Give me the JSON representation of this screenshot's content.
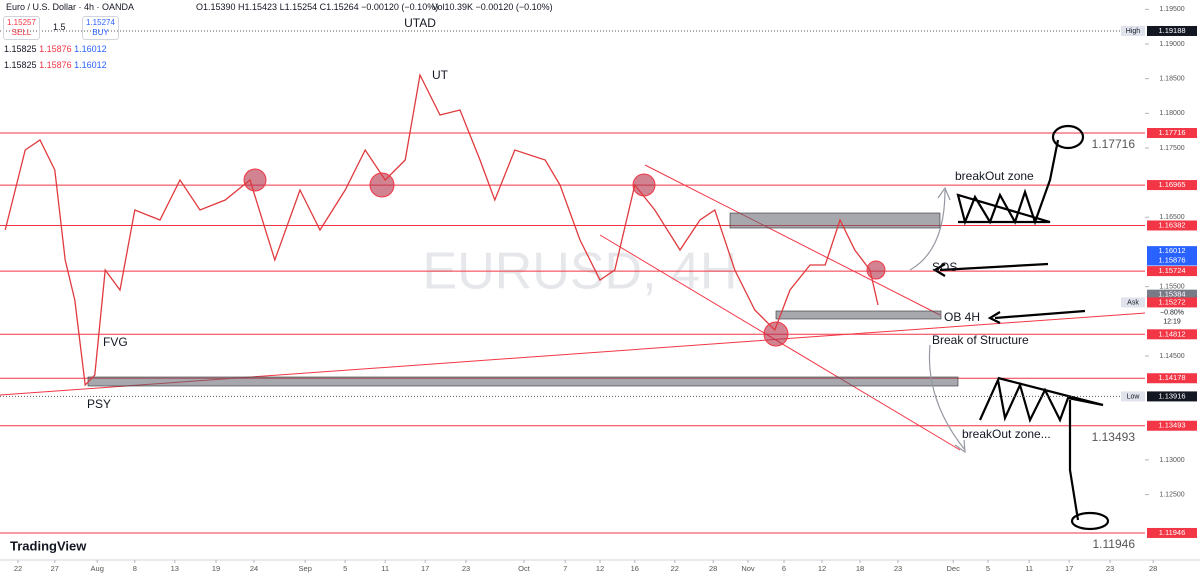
{
  "header": {
    "symbol": "Euro / U.S. Dollar · 4h · OANDA",
    "ohlc": "O1.15390 H1.15423 L1.15254 C1.15264 −0.00120 (−0.10%)",
    "volume": "Vol10.39K −0.00120 (−0.10%)",
    "sell_price": "1.15257",
    "sell": "SELL",
    "spread": "1.5",
    "buy_price": "1.15274",
    "buy": "BUY",
    "rows": [
      [
        "1.15825",
        "1.15876",
        "1.16012"
      ],
      [
        "1.15825",
        "1.15876",
        "1.16012"
      ]
    ]
  },
  "chart_data": {
    "type": "line",
    "watermark": "EURUSD, 4H",
    "logo": "TradingView",
    "x": [
      -1.6,
      0.9,
      2.75,
      4.6,
      5.9,
      7.1,
      8.4,
      9.6,
      10.9,
      12.75,
      14.6,
      17.75,
      20.25,
      22.75,
      25.9,
      29,
      32.1,
      35.25,
      37.75,
      40.9,
      43.4,
      45.9,
      48.4,
      50.25,
      52.75,
      55.25,
      57.75,
      59.6,
      62.1,
      65.9,
      67.75,
      70.25,
      72.75,
      74.6,
      77.1,
      79.6,
      82.75,
      85.25,
      87.1,
      89.6,
      92.1,
      94.6,
      96.5,
      99,
      100.9,
      102.75,
      104.6,
      106.5,
      107.5
    ],
    "series": [
      {
        "color": "#e03a3e",
        "values": [
          1.16317,
          1.17471,
          1.17615,
          1.17182,
          1.15884,
          1.15307,
          1.14081,
          1.14225,
          1.1574,
          1.15451,
          1.16605,
          1.16461,
          1.17038,
          1.16605,
          1.16749,
          1.17038,
          1.15884,
          1.16894,
          1.16317,
          1.16894,
          1.17471,
          1.17038,
          1.17327,
          1.18553,
          1.17976,
          1.18048,
          1.17327,
          1.16749,
          1.17471,
          1.17327,
          1.16966,
          1.16172,
          1.15595,
          1.1574,
          1.16966,
          1.16605,
          1.16028,
          1.16461,
          1.16605,
          1.1574,
          1.15163,
          1.14874,
          1.15451,
          1.15812,
          1.15812,
          1.16461,
          1.16028,
          1.1574,
          1.15235
        ]
      }
    ],
    "xlim": [
      -2.25,
      143
    ],
    "ylim": [
      1.11556,
      1.19635
    ],
    "xticks": [
      {
        "value": 0,
        "label": "22"
      },
      {
        "value": 4.6,
        "label": "27"
      },
      {
        "value": 9.9,
        "label": "Aug"
      },
      {
        "value": 14.6,
        "label": "8"
      },
      {
        "value": 19.6,
        "label": "13"
      },
      {
        "value": 24.75,
        "label": "19"
      },
      {
        "value": 29.5,
        "label": "24"
      },
      {
        "value": 35.9,
        "label": "Sep"
      },
      {
        "value": 40.9,
        "label": "5"
      },
      {
        "value": 45.9,
        "label": "11"
      },
      {
        "value": 50.9,
        "label": "17"
      },
      {
        "value": 56,
        "label": "23"
      },
      {
        "value": 63.25,
        "label": "Oct"
      },
      {
        "value": 68.4,
        "label": "7"
      },
      {
        "value": 72.75,
        "label": "12"
      },
      {
        "value": 77.1,
        "label": "16"
      },
      {
        "value": 82.1,
        "label": "22"
      },
      {
        "value": 86.9,
        "label": "28"
      },
      {
        "value": 91.25,
        "label": "Nov"
      },
      {
        "value": 95.75,
        "label": "6"
      },
      {
        "value": 100.5,
        "label": "12"
      },
      {
        "value": 105.25,
        "label": "18"
      },
      {
        "value": 110,
        "label": "23"
      },
      {
        "value": 116.9,
        "label": "Dec"
      },
      {
        "value": 121.25,
        "label": "5"
      },
      {
        "value": 126.4,
        "label": "11"
      },
      {
        "value": 131.4,
        "label": "17"
      },
      {
        "value": 136.5,
        "label": "23"
      },
      {
        "value": 141.9,
        "label": "28"
      }
    ],
    "yticks": [
      {
        "value": 1.195,
        "label": "1.19500"
      },
      {
        "value": 1.19,
        "label": "1.19000"
      },
      {
        "value": 1.185,
        "label": "1.18500"
      },
      {
        "value": 1.18,
        "label": "1.18000"
      },
      {
        "value": 1.175,
        "label": "1.17500"
      },
      {
        "value": 1.165,
        "label": "1.16500"
      },
      {
        "value": 1.155,
        "label": "1.15500"
      },
      {
        "value": 1.145,
        "label": "1.14500"
      },
      {
        "value": 1.13,
        "label": "1.13000"
      },
      {
        "value": 1.125,
        "label": "1.12500"
      }
    ],
    "levels": {
      "color": "#f23645",
      "values": [
        1.17716,
        1.16965,
        1.16382,
        1.15724,
        1.14812,
        1.14178,
        1.13493,
        1.11946
      ]
    },
    "price_tags": [
      {
        "label": "High",
        "value": 1.19188,
        "color": "#131722"
      },
      {
        "value": 1.16012,
        "color": "#2962ff"
      },
      {
        "value": 1.15876,
        "color": "#2962ff"
      },
      {
        "value": 1.15384,
        "color": "#787b86"
      },
      {
        "label": "Ask",
        "value": 1.15272,
        "color": "#f23645",
        "change": "−0.80%",
        "countdown": "12:19"
      },
      {
        "label": "Low",
        "value": 1.13916,
        "color": "#131722"
      }
    ],
    "annotations": [
      "UTAD",
      "UT",
      "FVG",
      "PSY",
      "breakOut zone",
      "SOS",
      "OB 4H",
      "Break of Structure",
      "breakOut zone..."
    ]
  }
}
